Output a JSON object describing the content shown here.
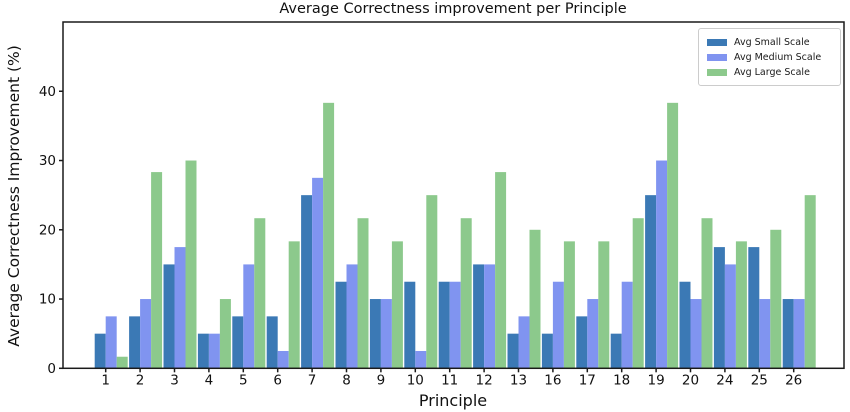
{
  "chart_data": {
    "type": "bar",
    "title": "Average Correctness improvement per Principle",
    "xlabel": "Principle",
    "ylabel": "Average Correctness Improvement (%)",
    "categories": [
      "1",
      "2",
      "3",
      "4",
      "5",
      "6",
      "7",
      "8",
      "9",
      "10",
      "11",
      "12",
      "13",
      "16",
      "17",
      "18",
      "19",
      "20",
      "24",
      "25",
      "26"
    ],
    "series": [
      {
        "name": "Avg Small Scale",
        "color": "#3b79b5",
        "values": [
          5,
          7.5,
          15,
          5,
          7.5,
          7.5,
          25,
          12.5,
          10,
          12.5,
          12.5,
          15,
          5,
          5,
          7.5,
          5,
          25,
          12.5,
          17.5,
          17.5,
          10
        ]
      },
      {
        "name": "Avg Medium Scale",
        "color": "#8094f0",
        "values": [
          7.5,
          10,
          17.5,
          5,
          15,
          2.5,
          27.5,
          15,
          10,
          2.5,
          12.5,
          15,
          7.5,
          12.5,
          10,
          12.5,
          30,
          10,
          15,
          10,
          10
        ]
      },
      {
        "name": "Avg Large Scale",
        "color": "#8cc98c",
        "values": [
          1.67,
          28.33,
          30,
          10,
          21.67,
          18.33,
          38.33,
          21.67,
          18.33,
          25,
          21.67,
          28.33,
          20,
          18.33,
          18.33,
          21.67,
          38.33,
          21.67,
          18.33,
          20,
          25
        ]
      }
    ],
    "ylim": [
      0,
      50
    ],
    "yticks": [
      0,
      10,
      20,
      30,
      40
    ],
    "grid": false,
    "legend_position": "upper right",
    "spine_color": "#1a1a1a",
    "tick_label_color": "#111111"
  }
}
